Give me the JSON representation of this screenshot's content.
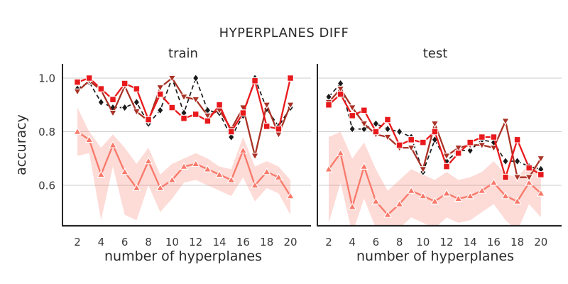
{
  "page": {
    "title": "HYPERPLANES DIFF"
  },
  "colors": {
    "red": "#e8191c",
    "darkred": "#a93226",
    "black": "#1a1a1a",
    "salmon": "#f8796a",
    "band": "#f8796a",
    "grid": "#cccccc",
    "spine": "#262626",
    "text": "#2b2b2b",
    "tick_text": "#3a3a3a"
  },
  "chart_data": [
    {
      "type": "line",
      "title": "train",
      "xlabel": "number of hyperplanes",
      "ylabel": "accuracy",
      "x": [
        2,
        3,
        4,
        5,
        6,
        7,
        8,
        9,
        10,
        11,
        12,
        13,
        14,
        15,
        16,
        17,
        18,
        19,
        20
      ],
      "xticks": [
        "2",
        "4",
        "6",
        "8",
        "10",
        "12",
        "14",
        "16",
        "18",
        "20"
      ],
      "yticks": [
        "1.0",
        "0.8",
        "0.6"
      ],
      "ytick_values": [
        1.0,
        0.8,
        0.6
      ],
      "ylim": [
        0.45,
        1.05
      ],
      "grid": "horizontal",
      "legend": "none",
      "series": [
        {
          "name": "salmon-triangle-up",
          "color": "salmon",
          "line": "solid",
          "marker": "triangle-up",
          "values": [
            0.8,
            0.77,
            0.64,
            0.75,
            0.65,
            0.59,
            0.69,
            0.59,
            0.62,
            0.67,
            0.68,
            0.66,
            0.64,
            0.62,
            0.73,
            0.6,
            0.65,
            0.63,
            0.56
          ],
          "band_upper": [
            0.89,
            0.8,
            0.74,
            0.79,
            0.74,
            0.68,
            0.74,
            0.64,
            0.68,
            0.7,
            0.72,
            0.7,
            0.67,
            0.66,
            0.78,
            0.67,
            0.69,
            0.67,
            0.62
          ],
          "band_lower": [
            0.71,
            0.72,
            0.47,
            0.67,
            0.49,
            0.47,
            0.6,
            0.5,
            0.55,
            0.61,
            0.62,
            0.6,
            0.58,
            0.56,
            0.63,
            0.54,
            0.59,
            0.57,
            0.49
          ]
        },
        {
          "name": "black-dashed-diamond",
          "color": "black",
          "line": "dashed",
          "marker": "diamond",
          "values": [
            0.96,
            0.985,
            0.91,
            0.89,
            0.89,
            0.91,
            0.83,
            0.88,
            1.0,
            0.87,
            1.0,
            0.88,
            0.87,
            0.78,
            0.86,
            1.0,
            0.885,
            0.82,
            0.89
          ]
        },
        {
          "name": "darkred-triangle-down",
          "color": "darkred",
          "line": "solid",
          "marker": "triangle-down",
          "values": [
            0.95,
            0.99,
            0.955,
            0.87,
            0.97,
            0.875,
            0.84,
            0.965,
            1.0,
            0.93,
            0.92,
            0.86,
            0.88,
            0.81,
            0.89,
            0.71,
            0.9,
            0.79,
            0.9
          ]
        },
        {
          "name": "red-square",
          "color": "red",
          "line": "solid",
          "marker": "square",
          "values": [
            0.985,
            1.0,
            0.96,
            0.92,
            0.98,
            0.96,
            0.845,
            0.94,
            0.89,
            0.85,
            0.865,
            0.84,
            0.9,
            0.8,
            0.87,
            0.99,
            0.82,
            0.81,
            1.0
          ]
        }
      ]
    },
    {
      "type": "line",
      "title": "test",
      "xlabel": "number of hyperplanes",
      "ylabel": "",
      "x": [
        2,
        3,
        4,
        5,
        6,
        7,
        8,
        9,
        10,
        11,
        12,
        13,
        14,
        15,
        16,
        17,
        18,
        19,
        20
      ],
      "xticks": [
        "2",
        "4",
        "6",
        "8",
        "10",
        "12",
        "14",
        "16",
        "18",
        "20"
      ],
      "yticks": [],
      "ytick_values": [
        1.0,
        0.8,
        0.6
      ],
      "ylim": [
        0.45,
        1.05
      ],
      "grid": "horizontal",
      "legend": "none",
      "series": [
        {
          "name": "salmon-triangle-up",
          "color": "salmon",
          "line": "solid",
          "marker": "triangle-up",
          "values": [
            0.66,
            0.72,
            0.52,
            0.67,
            0.54,
            0.49,
            0.53,
            0.58,
            0.56,
            0.54,
            0.57,
            0.55,
            0.56,
            0.58,
            0.61,
            0.56,
            0.54,
            0.61,
            0.57
          ],
          "band_upper": [
            0.78,
            0.8,
            0.7,
            0.76,
            0.66,
            0.58,
            0.62,
            0.66,
            0.64,
            0.62,
            0.65,
            0.62,
            0.63,
            0.65,
            0.69,
            0.64,
            0.63,
            0.68,
            0.66
          ],
          "band_lower": [
            0.46,
            0.61,
            0.42,
            0.55,
            0.44,
            0.42,
            0.44,
            0.48,
            0.46,
            0.44,
            0.48,
            0.46,
            0.47,
            0.5,
            0.53,
            0.47,
            0.43,
            0.53,
            0.48
          ]
        },
        {
          "name": "black-dashed-diamond",
          "color": "black",
          "line": "dashed",
          "marker": "diamond",
          "values": [
            0.93,
            0.98,
            0.81,
            0.81,
            0.83,
            0.81,
            0.8,
            0.78,
            0.65,
            0.77,
            0.69,
            0.73,
            0.73,
            0.77,
            0.76,
            0.69,
            0.69,
            0.67,
            0.66
          ]
        },
        {
          "name": "darkred-triangle-down",
          "color": "darkred",
          "line": "solid",
          "marker": "triangle-down",
          "values": [
            0.91,
            0.96,
            0.89,
            0.83,
            0.79,
            0.78,
            0.74,
            0.74,
            0.66,
            0.83,
            0.71,
            0.74,
            0.75,
            0.75,
            0.74,
            0.84,
            0.63,
            0.63,
            0.7
          ]
        },
        {
          "name": "red-square",
          "color": "red",
          "line": "solid",
          "marker": "square",
          "values": [
            0.9,
            0.94,
            0.86,
            0.88,
            0.8,
            0.845,
            0.75,
            0.77,
            0.76,
            0.8,
            0.67,
            0.72,
            0.76,
            0.78,
            0.78,
            0.63,
            0.77,
            0.665,
            0.64
          ]
        }
      ]
    }
  ]
}
